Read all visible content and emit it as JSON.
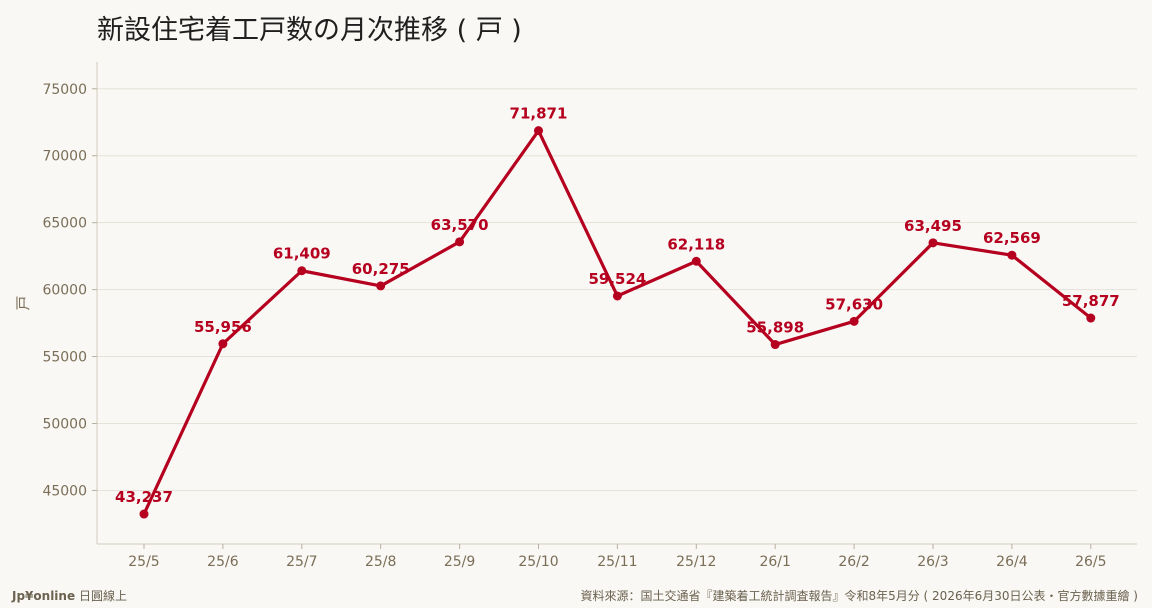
{
  "title": "新設住宅着工戸数の月次推移 ( 戸 )",
  "footer": {
    "brand": "Jp¥online",
    "brand_suffix": "日圓線上",
    "source": "資料來源：国土交通省『建築着工統計調査報告』令和8年5月分 ( 2026年6月30日公表・官方數據重繪 )"
  },
  "colors": {
    "series": "#b5001f",
    "axis_text": "#7a6e58",
    "grid": "#e6e2da",
    "background": "#faf8f4"
  },
  "chart_data": {
    "type": "line",
    "title": "新設住宅着工戸数の月次推移 ( 戸 )",
    "xlabel": "",
    "ylabel": "戸",
    "ylim": [
      41000,
      77000
    ],
    "yticks": [
      45000,
      50000,
      55000,
      60000,
      65000,
      70000,
      75000
    ],
    "grid": true,
    "categories": [
      "25/5",
      "25/6",
      "25/7",
      "25/8",
      "25/9",
      "25/10",
      "25/11",
      "25/12",
      "26/1",
      "26/2",
      "26/3",
      "26/4",
      "26/5"
    ],
    "series": [
      {
        "values": [
          43237,
          55956,
          61409,
          60275,
          63570,
          71871,
          59524,
          62118,
          55898,
          57630,
          63495,
          62569,
          57877
        ],
        "labels": [
          "43,237",
          "55,956",
          "61,409",
          "60,275",
          "63,570",
          "71,871",
          "59,524",
          "62,118",
          "55,898",
          "57,630",
          "63,495",
          "62,569",
          "57,877"
        ]
      }
    ]
  }
}
